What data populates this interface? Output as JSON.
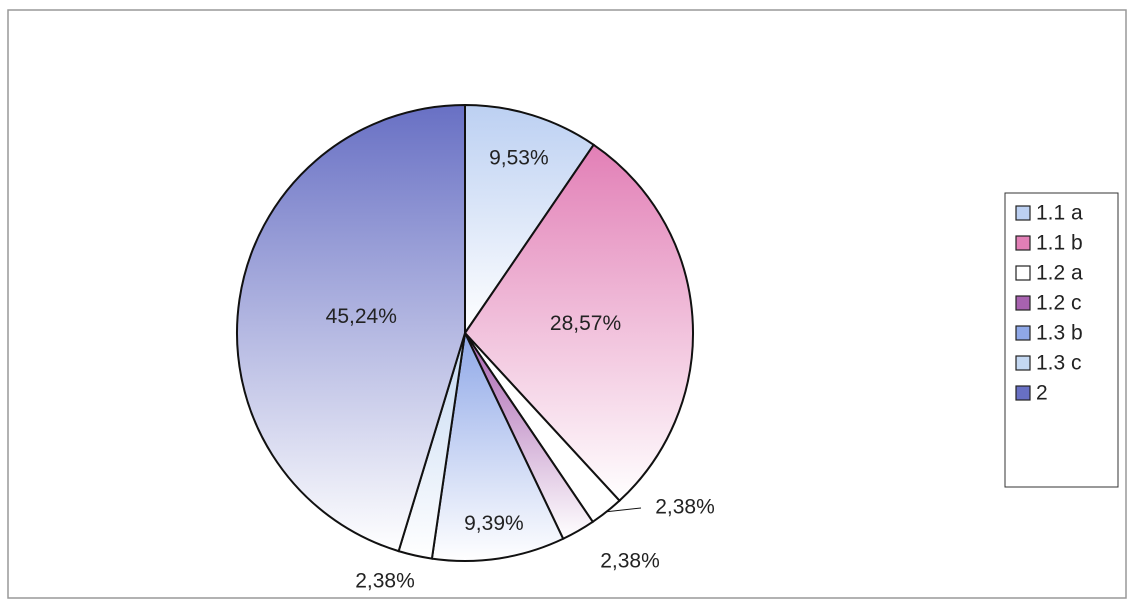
{
  "chart_data": {
    "type": "pie",
    "categories": [
      "1.1 a",
      "1.1 b",
      "1.2 a",
      "1.2 c",
      "1.3 b",
      "1.3 c",
      "2"
    ],
    "values": [
      9.53,
      28.57,
      2.38,
      2.38,
      9.39,
      2.38,
      45.24
    ],
    "value_labels": [
      "9,53%",
      "28,57%",
      "2,38%",
      "2,38%",
      "9,39%",
      "2,38%",
      "45,24%"
    ],
    "colors": [
      "#bcd0f2",
      "#e27fb6",
      "#ffffff",
      "#a862b0",
      "#8fa8e8",
      "#c4d8f2",
      "#6870c4"
    ],
    "legend": "right"
  }
}
